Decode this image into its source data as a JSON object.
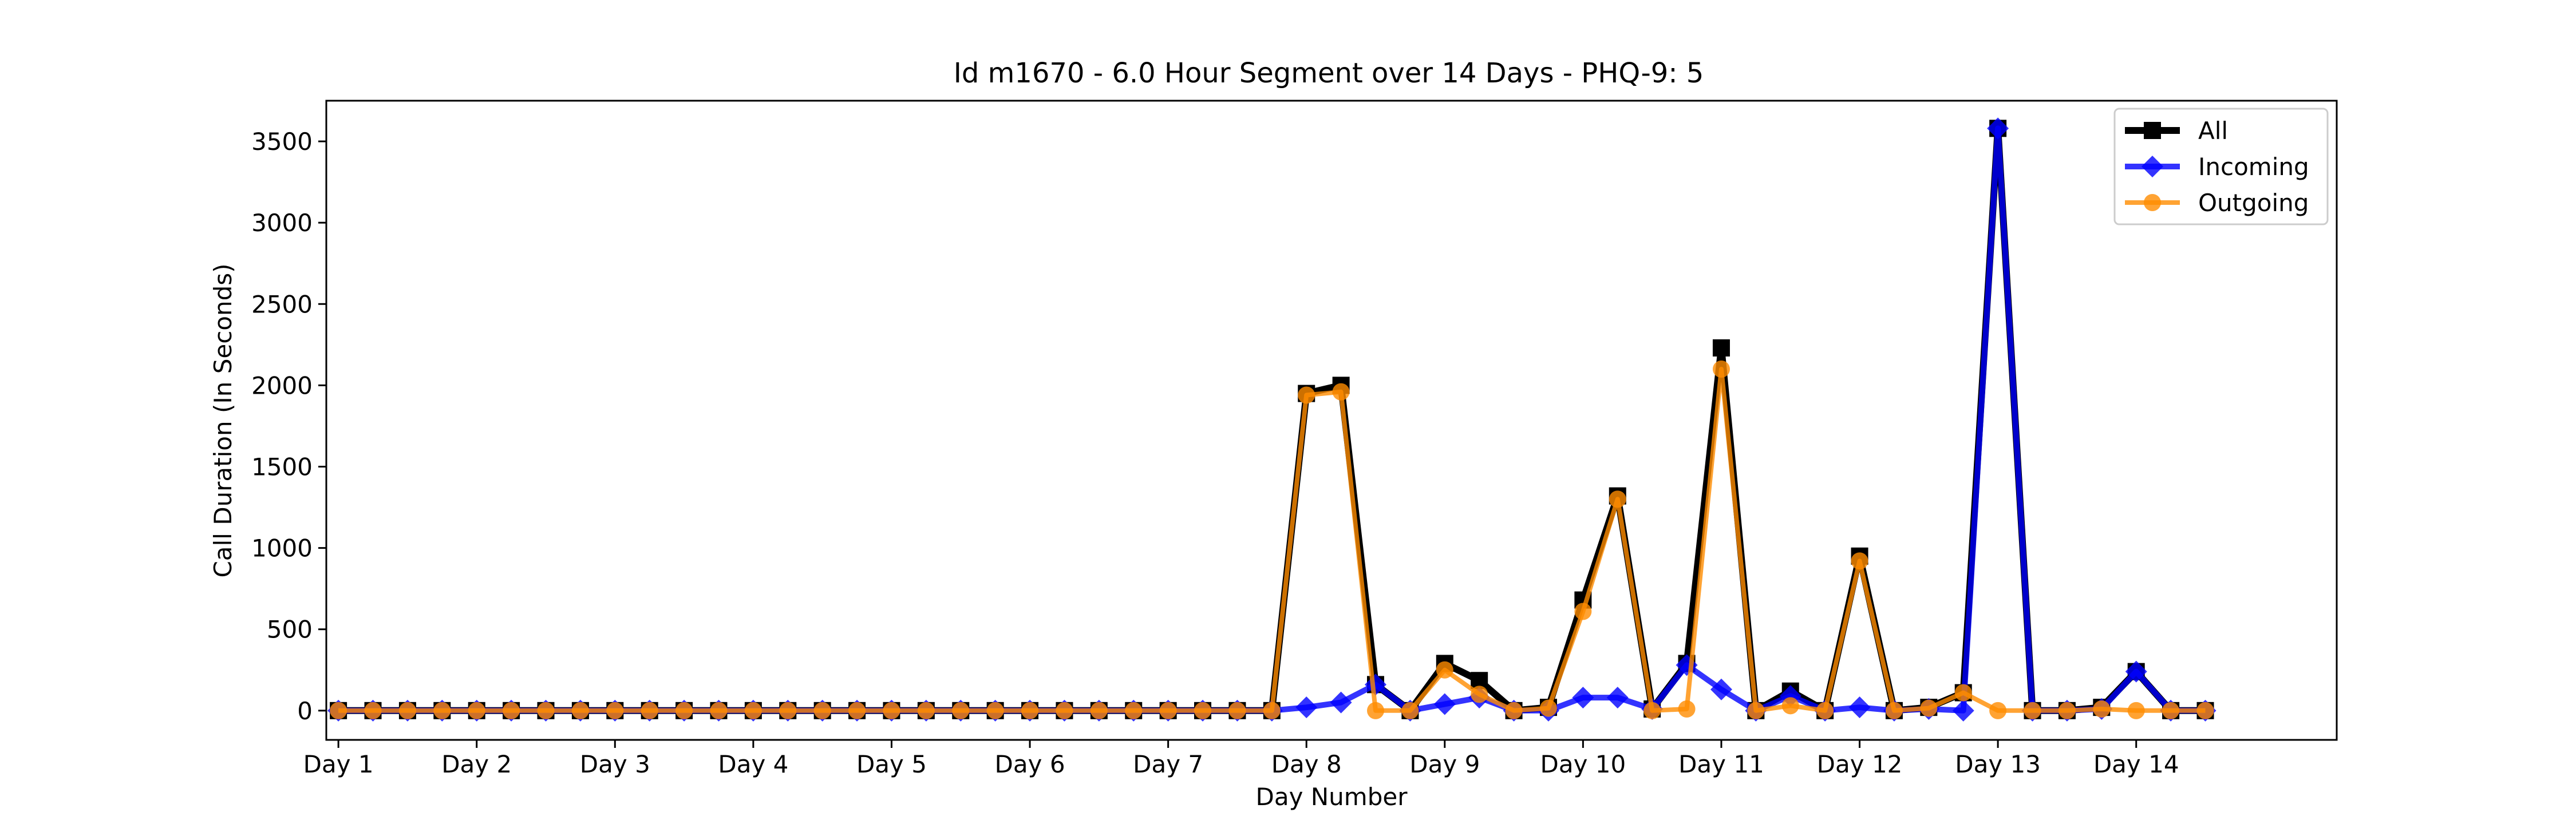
{
  "chart_data": {
    "type": "line",
    "title": "Id m1670 - 6.0 Hour Segment over 14 Days - PHQ-9: 5",
    "xlabel": "Day Number",
    "ylabel": "Call Duration (In Seconds)",
    "xlim": [
      -0.35,
      57.8
    ],
    "ylim": [
      -180,
      3750
    ],
    "yticks": [
      0,
      500,
      1000,
      1500,
      2000,
      2500,
      3000,
      3500
    ],
    "xticks": [
      {
        "x": 0,
        "label": "Day 1"
      },
      {
        "x": 4,
        "label": "Day 2"
      },
      {
        "x": 8,
        "label": "Day 3"
      },
      {
        "x": 12,
        "label": "Day 4"
      },
      {
        "x": 16,
        "label": "Day 5"
      },
      {
        "x": 20,
        "label": "Day 6"
      },
      {
        "x": 24,
        "label": "Day 7"
      },
      {
        "x": 28,
        "label": "Day 8"
      },
      {
        "x": 32,
        "label": "Day 9"
      },
      {
        "x": 36,
        "label": "Day 10"
      },
      {
        "x": 40,
        "label": "Day 11"
      },
      {
        "x": 44,
        "label": "Day 12"
      },
      {
        "x": 48,
        "label": "Day 13"
      },
      {
        "x": 52,
        "label": "Day 14"
      }
    ],
    "legend_position": "top-right",
    "grid": false,
    "series": [
      {
        "name": "All",
        "color": "#000000",
        "marker": "square",
        "values": [
          0,
          0,
          0,
          0,
          0,
          0,
          0,
          0,
          0,
          0,
          0,
          0,
          0,
          0,
          0,
          0,
          0,
          0,
          0,
          0,
          0,
          0,
          0,
          0,
          0,
          0,
          0,
          0,
          1950,
          2000,
          160,
          0,
          290,
          185,
          0,
          20,
          680,
          1320,
          10,
          290,
          2230,
          0,
          120,
          0,
          950,
          0,
          20,
          110,
          3580,
          0,
          0,
          20,
          240,
          0,
          0
        ]
      },
      {
        "name": "Incoming",
        "color": "#0000ff",
        "marker": "diamond",
        "values": [
          0,
          0,
          0,
          0,
          0,
          0,
          0,
          0,
          0,
          0,
          0,
          0,
          0,
          0,
          0,
          0,
          0,
          0,
          0,
          0,
          0,
          0,
          0,
          0,
          0,
          0,
          0,
          0,
          20,
          50,
          160,
          0,
          40,
          80,
          0,
          0,
          80,
          80,
          10,
          280,
          130,
          0,
          90,
          0,
          20,
          0,
          10,
          0,
          3580,
          0,
          0,
          10,
          240,
          0,
          0
        ]
      },
      {
        "name": "Outgoing",
        "color": "#ff8c00",
        "marker": "circle",
        "values": [
          0,
          0,
          0,
          0,
          0,
          0,
          0,
          0,
          0,
          0,
          0,
          0,
          0,
          0,
          0,
          0,
          0,
          0,
          0,
          0,
          0,
          0,
          0,
          0,
          0,
          0,
          0,
          0,
          1940,
          1960,
          0,
          0,
          250,
          100,
          0,
          15,
          610,
          1300,
          0,
          10,
          2100,
          0,
          30,
          0,
          920,
          0,
          15,
          110,
          0,
          0,
          0,
          10,
          0,
          0,
          0
        ]
      }
    ]
  }
}
